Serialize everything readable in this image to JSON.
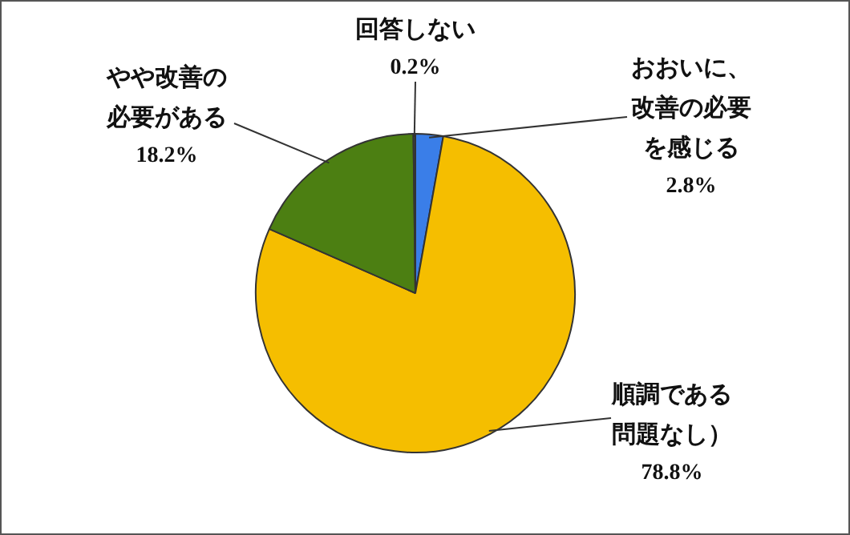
{
  "chart_data": {
    "type": "pie",
    "categories": [
      "おおいに、改善の必要を感じる",
      "順調である問題なし）",
      "やや改善の必要がある",
      "回答しない"
    ],
    "values": [
      2.8,
      78.8,
      18.2,
      0.2
    ],
    "colors": [
      "#3a7ee8",
      "#f5be00",
      "#4c7f12",
      "#4a4a4a"
    ],
    "value_labels": [
      "2.8%",
      "78.8%",
      "18.2%",
      "0.2%"
    ],
    "legend": false
  }
}
